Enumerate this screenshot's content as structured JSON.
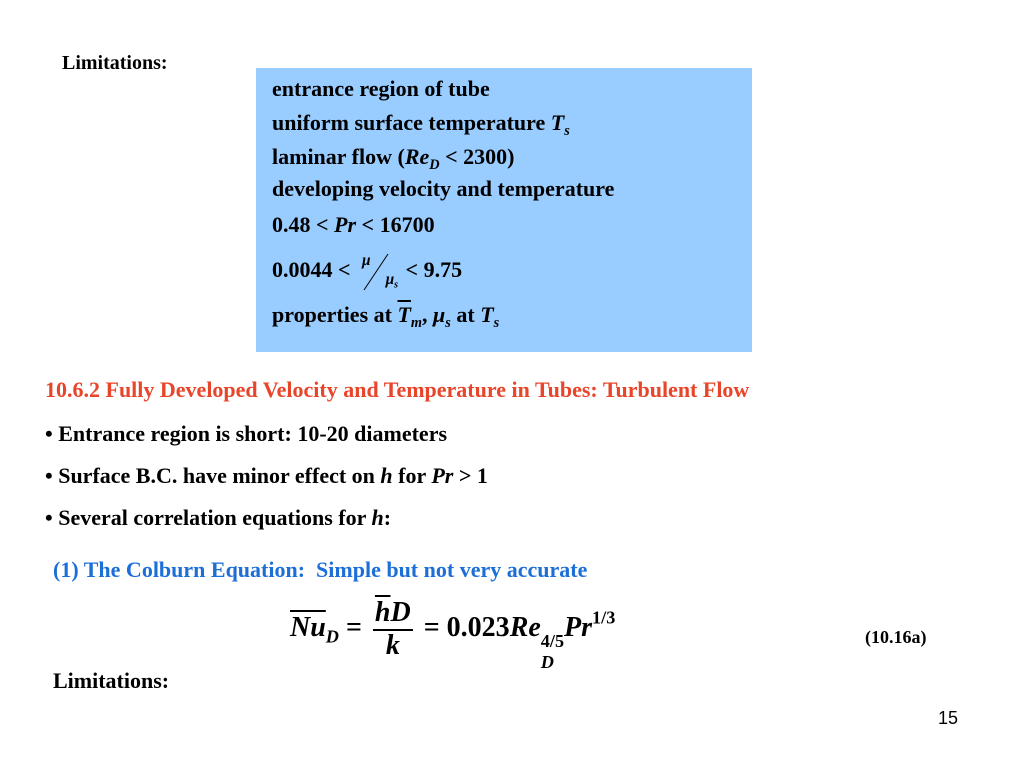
{
  "top_label": "Limitations:",
  "box": {
    "lines": [
      [
        {
          "t": "entrance region of tube"
        }
      ],
      [
        {
          "t": "uniform surface temperature "
        },
        {
          "t": "T",
          "i": true,
          "sub": "s"
        }
      ],
      [
        {
          "t": "laminar flow ("
        },
        {
          "t": "Re",
          "i": true,
          "sub": "D"
        },
        {
          "t": " < 2300)"
        }
      ],
      [
        {
          "t": "developing velocity and temperature"
        }
      ],
      [
        {
          "t": "0.48 < "
        },
        {
          "t": "Pr",
          "i": true
        },
        {
          "t": " < 16700"
        }
      ],
      [
        {
          "t": "0.0044 < "
        },
        {
          "slash": true,
          "num": [
            {
              "t": "μ",
              "i": true
            }
          ],
          "den": [
            {
              "t": "μ",
              "i": true,
              "sub": "s"
            }
          ]
        },
        {
          "t": " < 9.75"
        }
      ],
      [
        {
          "t": "properties at "
        },
        {
          "t": "T",
          "i": true,
          "ol": true,
          "sub": "m"
        },
        {
          "t": ", "
        },
        {
          "t": "μ",
          "i": true,
          "sub": "s"
        },
        {
          "t": " at "
        },
        {
          "t": "T",
          "i": true,
          "sub": "s"
        }
      ]
    ]
  },
  "section_title": "10.6.2 Fully Developed Velocity and Temperature in Tubes: Turbulent Flow",
  "bullets": [
    [
      {
        "t": "• Entrance region is short: 10-20 diameters"
      }
    ],
    [
      {
        "t": "• Surface B.C. have minor effect on "
      },
      {
        "t": "h",
        "i": true
      },
      {
        "t": " for "
      },
      {
        "t": "Pr",
        "i": true
      },
      {
        "t": " > 1"
      }
    ],
    [
      {
        "t": "• Several correlation equations for "
      },
      {
        "t": "h",
        "i": true
      },
      {
        "t": ":"
      }
    ]
  ],
  "subheading": "(1) The Colburn Equation:  Simple but not very accurate",
  "equation": [
    {
      "t": "Nu",
      "i": true,
      "ol": true,
      "sub": "D"
    },
    {
      "t": " = "
    },
    {
      "num": [
        {
          "t": "h",
          "i": true,
          "ol": true
        },
        {
          "t": "D",
          "i": true
        }
      ],
      "den": [
        {
          "t": "k",
          "i": true
        }
      ]
    },
    {
      "t": " = 0.023"
    },
    {
      "t": "Re",
      "i": true,
      "sup": "4/5",
      "sub": "D"
    },
    {
      "t": "Pr",
      "i": true,
      "sup": "1/3"
    }
  ],
  "equation_number": "(10.16a)",
  "bottom_label": "Limitations:",
  "page_number": "15"
}
